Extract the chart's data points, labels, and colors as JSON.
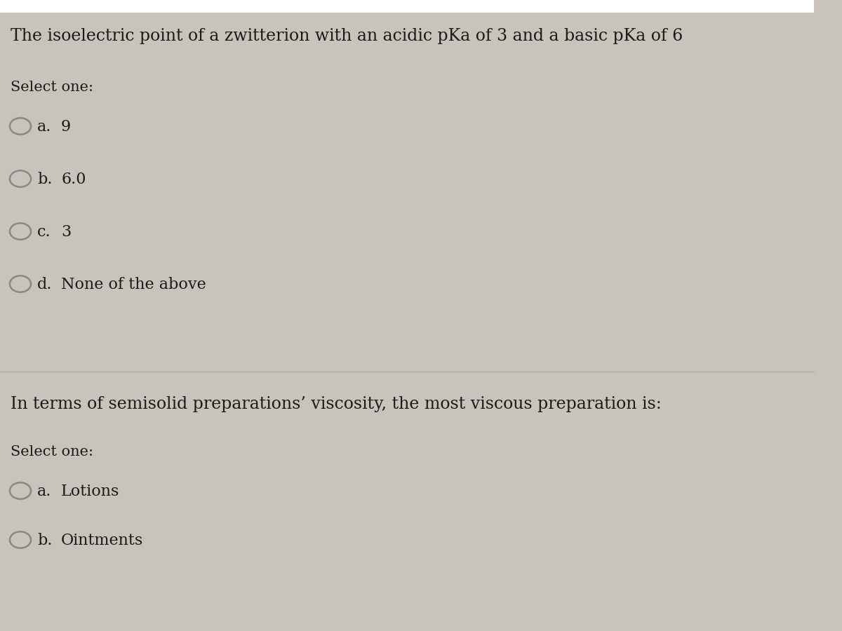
{
  "bg_color": "#c8c4bc",
  "text_color": "#1a1a1a",
  "q1_title": "The isoelectric point of a zwitterion with an acidic pKa of 3 and a basic pKa of 6",
  "q1_select": "Select one:",
  "q1_options": [
    {
      "label": "a.",
      "text": "9"
    },
    {
      "label": "b.",
      "text": "6.0"
    },
    {
      "label": "c.",
      "text": "3"
    },
    {
      "label": "d.",
      "text": "None of the above"
    }
  ],
  "q2_title": "In terms of semisolid preparations’ viscosity, the most viscous preparation is:",
  "q2_select": "Select one:",
  "q2_options": [
    {
      "label": "a.",
      "text": "Lotions"
    },
    {
      "label": "b.",
      "text": "Ointments"
    }
  ],
  "divider_color": "#aaaaaa",
  "circle_color": "#888888",
  "title_fontsize": 17,
  "option_fontsize": 16,
  "select_fontsize": 15
}
